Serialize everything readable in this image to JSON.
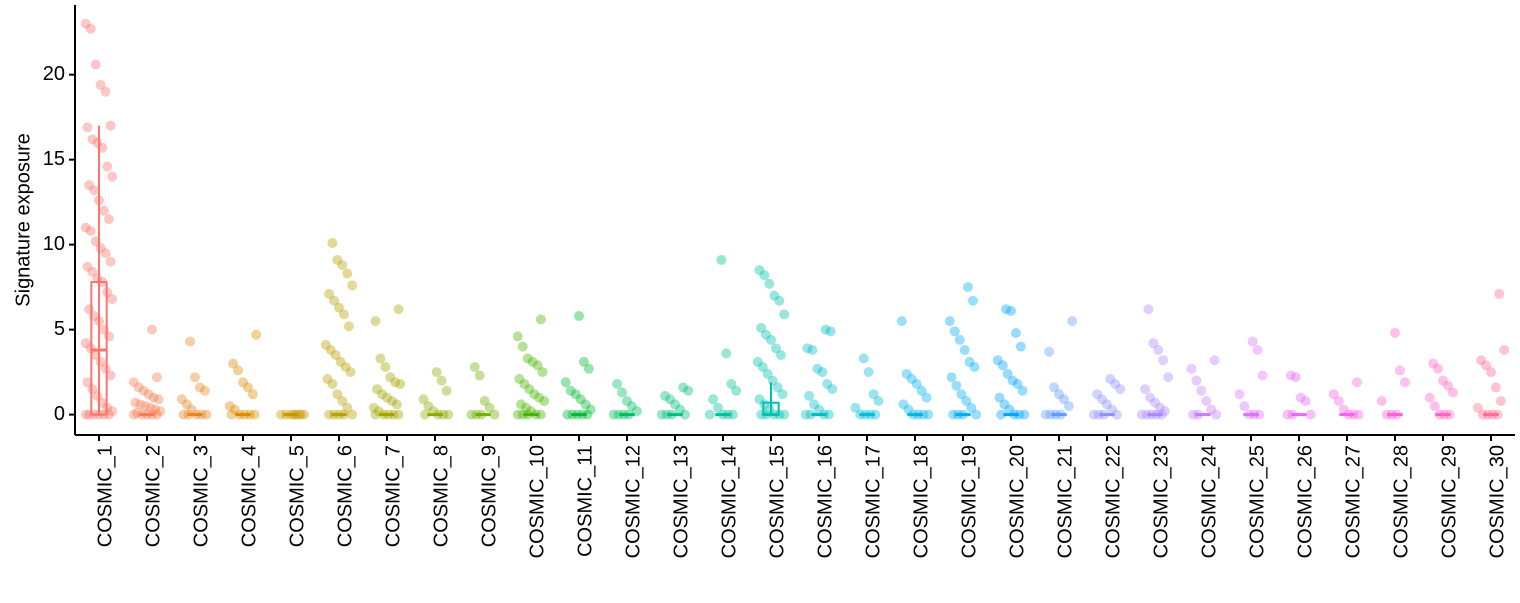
{
  "chart_data": {
    "type": "jitter-box",
    "y_label": "Signature exposure",
    "categories": [
      "COSMIC_1",
      "COSMIC_2",
      "COSMIC_3",
      "COSMIC_4",
      "COSMIC_5",
      "COSMIC_6",
      "COSMIC_7",
      "COSMIC_8",
      "COSMIC_9",
      "COSMIC_10",
      "COSMIC_11",
      "COSMIC_12",
      "COSMIC_13",
      "COSMIC_14",
      "COSMIC_15",
      "COSMIC_16",
      "COSMIC_17",
      "COSMIC_18",
      "COSMIC_19",
      "COSMIC_20",
      "COSMIC_21",
      "COSMIC_22",
      "COSMIC_23",
      "COSMIC_24",
      "COSMIC_25",
      "COSMIC_26",
      "COSMIC_27",
      "COSMIC_28",
      "COSMIC_29",
      "COSMIC_30"
    ],
    "colors": [
      "#F8766D",
      "#F27D52",
      "#E7851E",
      "#D98D00",
      "#C99800",
      "#B79F00",
      "#A3A500",
      "#8CAB00",
      "#6FB000",
      "#45B500",
      "#00BA38",
      "#00BD5F",
      "#00BF7D",
      "#00C097",
      "#00C1AE",
      "#00BFC4",
      "#00BCD8",
      "#00B5E8",
      "#00ADF6",
      "#00A5FF",
      "#619CFF",
      "#8F91FF",
      "#AC88FF",
      "#C77CFF",
      "#DB72FB",
      "#E96AEF",
      "#F564E3",
      "#FC61D5",
      "#FF65C3",
      "#FF6C91"
    ],
    "points": [
      [
        23,
        22.7,
        20.6,
        19.4,
        19,
        17,
        16.9,
        16.2,
        16,
        15.7,
        14.6,
        14,
        13.5,
        13.2,
        12.6,
        12,
        11.5,
        11,
        10.8,
        10.2,
        9.8,
        9.5,
        9,
        8.7,
        8.4,
        8,
        7.8,
        7.2,
        6.8,
        6.2,
        5.8,
        5.5,
        5,
        4.6,
        4.2,
        3.9,
        3.5,
        3.1,
        2.7,
        2.3,
        1.9,
        1.5,
        1.1,
        0.7,
        0.4,
        0.2,
        0,
        0,
        0,
        0,
        0,
        0
      ],
      [
        5,
        2.2,
        1.9,
        1.6,
        1.4,
        1.2,
        1,
        0.9,
        0.7,
        0.6,
        0.5,
        0.4,
        0.3,
        0.2,
        0.1,
        0,
        0,
        0,
        0,
        0
      ],
      [
        4.3,
        2.2,
        1.6,
        1.4,
        0.9,
        0.6,
        0.3,
        0,
        0,
        0,
        0,
        0
      ],
      [
        4.7,
        3,
        2.6,
        1.9,
        1.6,
        1.2,
        0.5,
        0.3,
        0,
        0,
        0,
        0,
        0
      ],
      [
        0,
        0,
        0,
        0,
        0,
        0,
        0,
        0
      ],
      [
        10.1,
        9.1,
        8.8,
        8.3,
        7.6,
        7.1,
        6.7,
        6.3,
        5.9,
        5.2,
        4.1,
        3.8,
        3.5,
        3.1,
        2.8,
        2.5,
        2.1,
        1.8,
        1.2,
        0.8,
        0.4,
        0,
        0,
        0,
        0,
        0
      ],
      [
        6.2,
        5.5,
        3.3,
        2.8,
        2.2,
        1.9,
        1.8,
        1.5,
        1.2,
        1,
        0.8,
        0.6,
        0.4,
        0.2,
        0,
        0,
        0,
        0,
        0
      ],
      [
        2.5,
        2,
        1.4,
        0.9,
        0.5,
        0.2,
        0,
        0,
        0,
        0
      ],
      [
        2.8,
        2.3,
        0.8,
        0.4,
        0,
        0,
        0,
        0
      ],
      [
        5.6,
        4.6,
        4,
        3.3,
        3.1,
        2.9,
        2.5,
        2.1,
        1.8,
        1.5,
        1.2,
        1,
        0.8,
        0.6,
        0.4,
        0.2,
        0,
        0,
        0,
        0,
        0
      ],
      [
        5.8,
        3.1,
        2.7,
        1.9,
        1.4,
        1.2,
        0.9,
        0.6,
        0.3,
        0,
        0,
        0,
        0,
        0
      ],
      [
        1.8,
        1.3,
        0.8,
        0.5,
        0.2,
        0,
        0,
        0,
        0
      ],
      [
        1.6,
        1.4,
        1.1,
        0.9,
        0.6,
        0.3,
        0,
        0,
        0,
        0
      ],
      [
        9.1,
        3.6,
        1.8,
        1.4,
        0.9,
        0.4,
        0,
        0,
        0,
        0
      ],
      [
        8.5,
        8.2,
        7.7,
        7,
        6.7,
        5.9,
        5.1,
        4.7,
        4.4,
        3.9,
        3.5,
        3.1,
        2.8,
        2.4,
        2,
        1.6,
        1.2,
        0.9,
        0.6,
        0.3,
        0,
        0,
        0,
        0,
        0
      ],
      [
        5,
        4.9,
        3.9,
        3.8,
        2.7,
        2.5,
        1.8,
        1.5,
        1.1,
        0.6,
        0.3,
        0,
        0,
        0,
        0
      ],
      [
        3.3,
        2.5,
        1.2,
        0.8,
        0.4,
        0,
        0,
        0,
        0
      ],
      [
        5.5,
        2.4,
        2.1,
        1.8,
        1.4,
        1,
        0.6,
        0.3,
        0,
        0,
        0,
        0
      ],
      [
        7.5,
        6.7,
        5.5,
        4.9,
        4.4,
        3.8,
        3.1,
        2.8,
        2.2,
        1.7,
        1.2,
        0.8,
        0.4,
        0,
        0,
        0,
        0
      ],
      [
        6.2,
        6.1,
        4.8,
        4,
        3.2,
        2.9,
        2.4,
        2,
        1.8,
        1.4,
        1,
        0.6,
        0.3,
        0,
        0,
        0,
        0
      ],
      [
        5.5,
        3.7,
        1.6,
        1.2,
        0.9,
        0.5,
        0,
        0,
        0,
        0
      ],
      [
        2.1,
        1.8,
        1.5,
        1.2,
        0.9,
        0.6,
        0.3,
        0,
        0,
        0,
        0
      ],
      [
        6.2,
        4.2,
        3.8,
        3.2,
        2.2,
        1.5,
        1,
        0.7,
        0.4,
        0.2,
        0,
        0,
        0,
        0,
        0
      ],
      [
        3.2,
        2.7,
        2,
        1.4,
        0.8,
        0.3,
        0,
        0,
        0
      ],
      [
        4.3,
        3.8,
        2.3,
        1.2,
        0.5,
        0,
        0,
        0
      ],
      [
        2.3,
        2.2,
        1,
        0.8,
        0,
        0,
        0
      ],
      [
        1.9,
        1.2,
        0.8,
        0.3,
        0,
        0,
        0
      ],
      [
        4.8,
        2.6,
        1.9,
        0.8,
        0,
        0,
        0
      ],
      [
        3,
        2.7,
        2,
        1.7,
        1.3,
        1,
        0.5,
        0,
        0,
        0
      ],
      [
        7.1,
        3.8,
        3.2,
        2.9,
        2.5,
        1.6,
        0.8,
        0.4,
        0,
        0,
        0,
        0
      ]
    ],
    "boxes": [
      [
        0,
        0,
        3.8,
        7.8,
        17
      ],
      [
        0,
        0,
        0,
        0,
        0
      ],
      [
        0,
        0,
        0,
        0,
        0
      ],
      [
        0,
        0,
        0,
        0,
        0
      ],
      [
        0,
        0,
        0,
        0,
        0
      ],
      [
        0,
        0,
        0,
        0,
        0
      ],
      [
        0,
        0,
        0,
        0,
        0
      ],
      [
        0,
        0,
        0,
        0,
        0
      ],
      [
        0,
        0,
        0,
        0,
        0
      ],
      [
        0,
        0,
        0,
        0,
        0
      ],
      [
        0,
        0,
        0,
        0,
        0
      ],
      [
        0,
        0,
        0,
        0,
        0
      ],
      [
        0,
        0,
        0,
        0,
        0
      ],
      [
        0,
        0,
        0,
        0,
        0
      ],
      [
        0,
        0,
        0,
        0.7,
        1.9
      ],
      [
        0,
        0,
        0,
        0,
        0
      ],
      [
        0,
        0,
        0,
        0,
        0
      ],
      [
        0,
        0,
        0,
        0,
        0
      ],
      [
        0,
        0,
        0,
        0,
        0
      ],
      [
        0,
        0,
        0,
        0,
        0
      ],
      [
        0,
        0,
        0,
        0,
        0
      ],
      [
        0,
        0,
        0,
        0,
        0
      ],
      [
        0,
        0,
        0,
        0,
        0
      ],
      [
        0,
        0,
        0,
        0,
        0
      ],
      [
        0,
        0,
        0,
        0,
        0
      ],
      [
        0,
        0,
        0,
        0,
        0
      ],
      [
        0,
        0,
        0,
        0,
        0
      ],
      [
        0,
        0,
        0,
        0,
        0
      ],
      [
        0,
        0,
        0,
        0,
        0
      ],
      [
        0,
        0,
        0,
        0,
        0
      ]
    ],
    "ylim": [
      -1.2,
      24.1
    ],
    "yticks": [
      0,
      5,
      10,
      15,
      20
    ],
    "grid": false
  }
}
